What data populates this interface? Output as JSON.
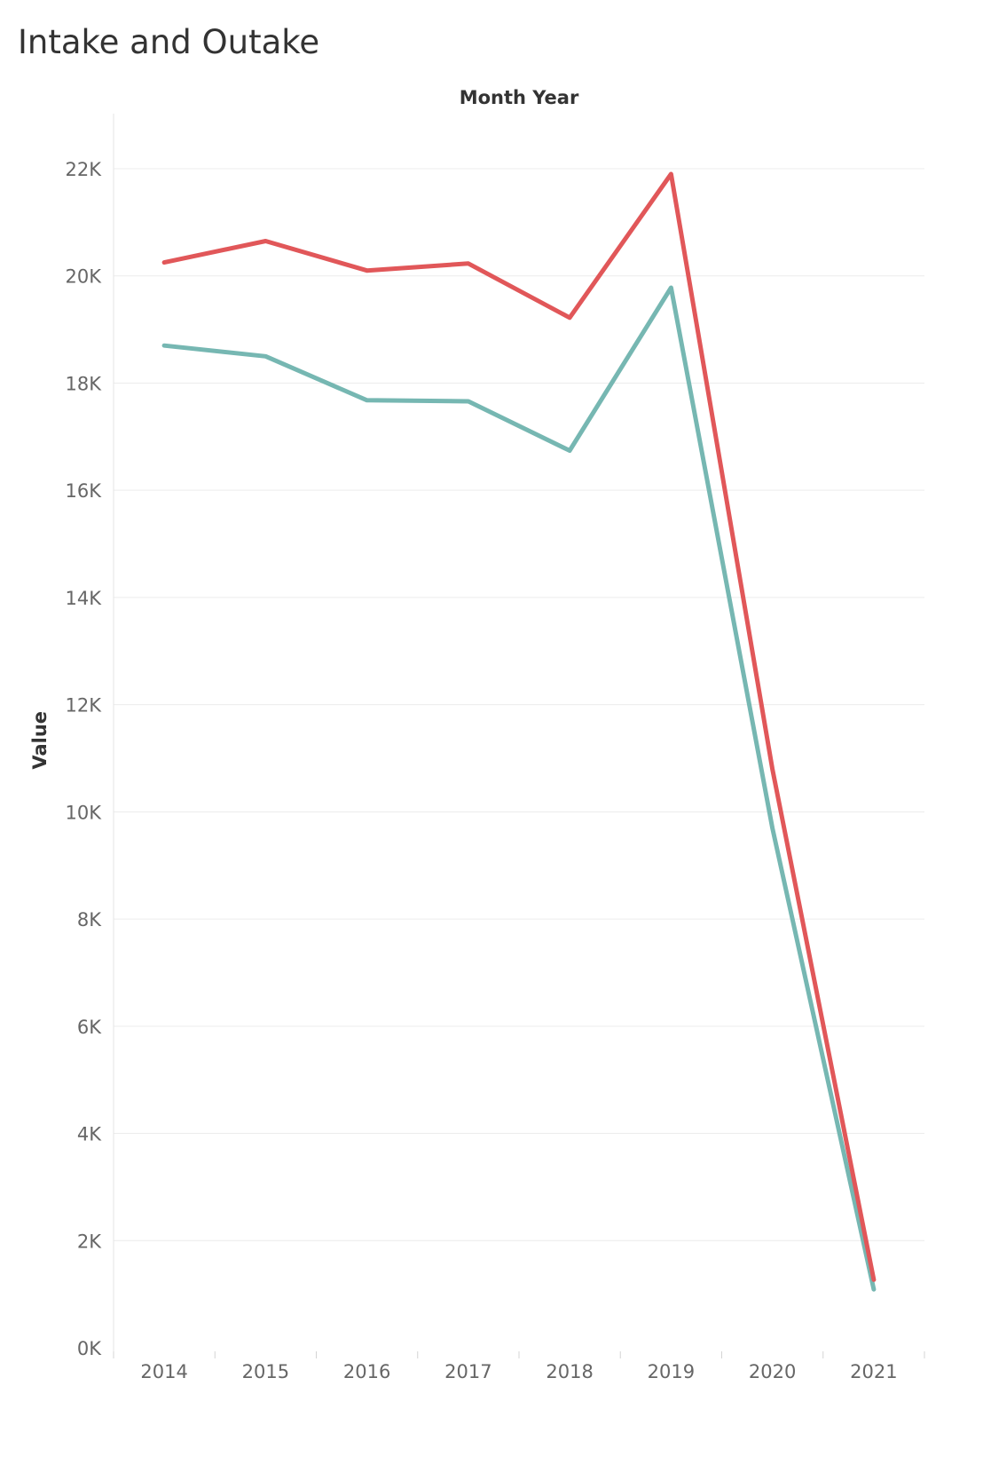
{
  "title": "Intake and Outake",
  "chart_data": {
    "type": "line",
    "title": "Intake and Outake",
    "x_header": "Month Year",
    "ylabel": "Value",
    "x": [
      "2014",
      "2015",
      "2016",
      "2017",
      "2018",
      "2019",
      "2020",
      "2021"
    ],
    "ylim": [
      0,
      23000
    ],
    "y_ticks": [
      0,
      2000,
      4000,
      6000,
      8000,
      10000,
      12000,
      14000,
      16000,
      18000,
      20000,
      22000
    ],
    "y_tick_labels": [
      "0K",
      "2K",
      "4K",
      "6K",
      "8K",
      "10K",
      "12K",
      "14K",
      "16K",
      "18K",
      "20K",
      "22K"
    ],
    "grid": true,
    "legend": "none",
    "series": [
      {
        "color": "#e15759",
        "values": [
          20250,
          20650,
          20100,
          20230,
          19220,
          21900,
          10800,
          1270
        ]
      },
      {
        "color": "#76b7b2",
        "values": [
          18700,
          18500,
          17680,
          17660,
          16740,
          19780,
          9700,
          1090
        ]
      }
    ]
  }
}
